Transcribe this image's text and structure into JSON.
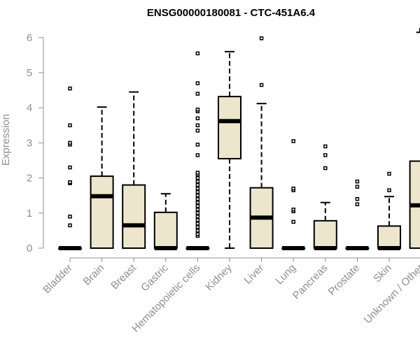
{
  "chart_data": {
    "type": "box",
    "title": "ENSG00000180081 - CTC-451A6.4",
    "xlabel": "",
    "ylabel": "Expression",
    "ylim": [
      0,
      6.2
    ],
    "yticks": [
      "0",
      "1",
      "2",
      "3",
      "4",
      "5",
      "6"
    ],
    "grid": false,
    "legend": "none",
    "colors": {
      "box_fill": "#ede6cc",
      "box_stroke": "#000000",
      "axis": "#8f8f8f",
      "title": "#000000"
    },
    "categories": [
      "Bladder",
      "Brain",
      "Breast",
      "Gastric",
      "Hematopoietic cells",
      "Kidney",
      "Liver",
      "Lung",
      "Pancreas",
      "Prostate",
      "Skin",
      "Unknown / Other"
    ],
    "boxes": [
      {
        "q1": 0,
        "median": 0,
        "q3": 0,
        "whisker_low": 0,
        "whisker_high": 0,
        "outliers": [
          0.65,
          0.9,
          1.85,
          1.88,
          2.3,
          2.95,
          3.0,
          3.5,
          4.55
        ]
      },
      {
        "q1": 0,
        "median": 1.48,
        "q3": 2.05,
        "whisker_low": 0,
        "whisker_high": 4.02,
        "outliers": []
      },
      {
        "q1": 0,
        "median": 0.65,
        "q3": 1.8,
        "whisker_low": 0,
        "whisker_high": 4.45,
        "outliers": []
      },
      {
        "q1": 0,
        "median": 0,
        "q3": 1.02,
        "whisker_low": 0,
        "whisker_high": 1.55,
        "outliers": []
      },
      {
        "q1": 0,
        "median": 0,
        "q3": 0,
        "whisker_low": 0,
        "whisker_high": 0,
        "outliers": [
          0.35,
          0.4,
          0.5,
          0.6,
          0.7,
          0.8,
          0.9,
          1.0,
          1.1,
          1.2,
          1.3,
          1.4,
          1.5,
          1.6,
          1.7,
          1.8,
          1.9,
          2.0,
          2.1,
          2.15,
          2.65,
          2.95,
          3.35,
          3.5,
          3.7,
          3.9,
          3.95,
          4.4,
          4.7,
          5.55
        ]
      },
      {
        "q1": 2.55,
        "median": 3.62,
        "q3": 4.32,
        "whisker_low": 0,
        "whisker_high": 5.6,
        "outliers": []
      },
      {
        "q1": 0,
        "median": 0.87,
        "q3": 1.72,
        "whisker_low": 0,
        "whisker_high": 4.12,
        "outliers": [
          4.65,
          5.98
        ]
      },
      {
        "q1": 0,
        "median": 0,
        "q3": 0,
        "whisker_low": 0,
        "whisker_high": 0,
        "outliers": [
          0.75,
          1.05,
          1.1,
          1.65,
          1.7,
          3.05
        ]
      },
      {
        "q1": 0,
        "median": 0,
        "q3": 0.78,
        "whisker_low": 0,
        "whisker_high": 1.3,
        "outliers": [
          2.28,
          2.65,
          2.9
        ]
      },
      {
        "q1": 0,
        "median": 0,
        "q3": 0,
        "whisker_low": 0,
        "whisker_high": 0,
        "outliers": [
          1.25,
          1.4,
          1.75,
          1.9
        ]
      },
      {
        "q1": 0,
        "median": 0,
        "q3": 0.63,
        "whisker_low": 0,
        "whisker_high": 1.47,
        "outliers": [
          1.65,
          2.12
        ]
      },
      {
        "q1": 0,
        "median": 1.22,
        "q3": 2.48,
        "whisker_low": 0,
        "whisker_high": 6.15,
        "outliers": [
          6.22
        ]
      }
    ]
  }
}
